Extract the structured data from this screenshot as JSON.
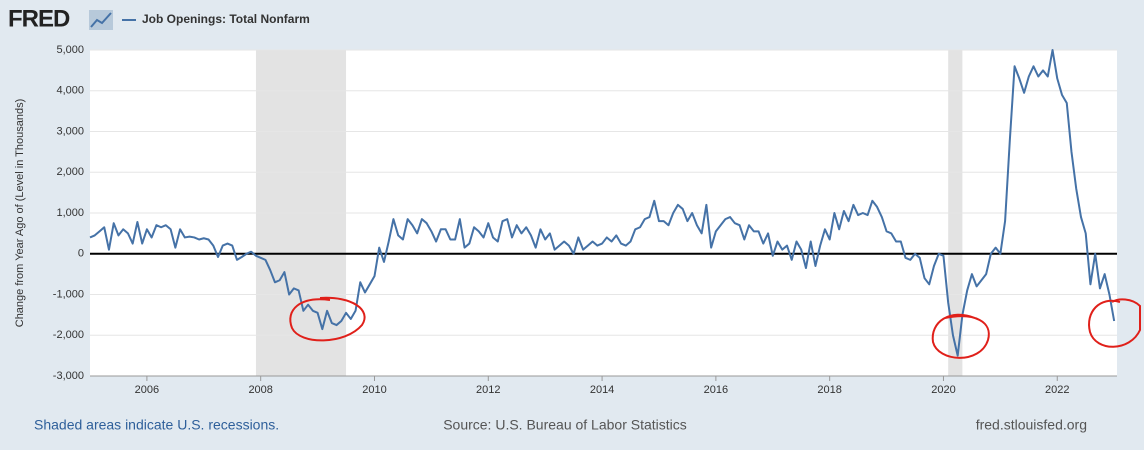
{
  "chart_data": {
    "type": "line",
    "logo": "FRED",
    "ylabel": "Change from Year Ago of (Level in Thousands)",
    "footnote": "Shaded areas indicate U.S. recessions.",
    "source": "Source: U.S. Bureau of Labor Statistics",
    "site": "fred.stlouisfed.org",
    "xlim": [
      2005,
      2023.05
    ],
    "xticks": [
      2006,
      2008,
      2010,
      2012,
      2014,
      2016,
      2018,
      2020,
      2022
    ],
    "ylim": [
      -3000,
      5000
    ],
    "yticks": [
      {
        "value": -3000,
        "label": "-3,000"
      },
      {
        "value": -2000,
        "label": "-2,000"
      },
      {
        "value": -1000,
        "label": "-1,000"
      },
      0,
      {
        "value": 1000,
        "label": "1,000"
      },
      {
        "value": 2000,
        "label": "2,000"
      },
      {
        "value": 3000,
        "label": "3,000"
      },
      {
        "value": 4000,
        "label": "4,000"
      },
      {
        "value": 5000,
        "label": "5,000"
      }
    ],
    "grid": true,
    "shaded_areas": [
      [
        2007.917,
        2009.5
      ],
      [
        2020.083,
        2020.333
      ]
    ],
    "x": [
      2005,
      2005.083,
      2005.167,
      2005.25,
      2005.333,
      2005.417,
      2005.5,
      2005.583,
      2005.667,
      2005.75,
      2005.833,
      2005.917,
      2006,
      2006.083,
      2006.167,
      2006.25,
      2006.333,
      2006.417,
      2006.5,
      2006.583,
      2006.667,
      2006.75,
      2006.833,
      2006.917,
      2007,
      2007.083,
      2007.167,
      2007.25,
      2007.333,
      2007.417,
      2007.5,
      2007.583,
      2007.667,
      2007.75,
      2007.833,
      2007.917,
      2008,
      2008.083,
      2008.167,
      2008.25,
      2008.333,
      2008.417,
      2008.5,
      2008.583,
      2008.667,
      2008.75,
      2008.833,
      2008.917,
      2009,
      2009.083,
      2009.167,
      2009.25,
      2009.333,
      2009.417,
      2009.5,
      2009.583,
      2009.667,
      2009.75,
      2009.833,
      2009.917,
      2010,
      2010.083,
      2010.167,
      2010.25,
      2010.333,
      2010.417,
      2010.5,
      2010.583,
      2010.667,
      2010.75,
      2010.833,
      2010.917,
      2011,
      2011.083,
      2011.167,
      2011.25,
      2011.333,
      2011.417,
      2011.5,
      2011.583,
      2011.667,
      2011.75,
      2011.833,
      2011.917,
      2012,
      2012.083,
      2012.167,
      2012.25,
      2012.333,
      2012.417,
      2012.5,
      2012.583,
      2012.667,
      2012.75,
      2012.833,
      2012.917,
      2013,
      2013.083,
      2013.167,
      2013.25,
      2013.333,
      2013.417,
      2013.5,
      2013.583,
      2013.667,
      2013.75,
      2013.833,
      2013.917,
      2014,
      2014.083,
      2014.167,
      2014.25,
      2014.333,
      2014.417,
      2014.5,
      2014.583,
      2014.667,
      2014.75,
      2014.833,
      2014.917,
      2015,
      2015.083,
      2015.167,
      2015.25,
      2015.333,
      2015.417,
      2015.5,
      2015.583,
      2015.667,
      2015.75,
      2015.833,
      2015.917,
      2016,
      2016.083,
      2016.167,
      2016.25,
      2016.333,
      2016.417,
      2016.5,
      2016.583,
      2016.667,
      2016.75,
      2016.833,
      2016.917,
      2017,
      2017.083,
      2017.167,
      2017.25,
      2017.333,
      2017.417,
      2017.5,
      2017.583,
      2017.667,
      2017.75,
      2017.833,
      2017.917,
      2018,
      2018.083,
      2018.167,
      2018.25,
      2018.333,
      2018.417,
      2018.5,
      2018.583,
      2018.667,
      2018.75,
      2018.833,
      2018.917,
      2019,
      2019.083,
      2019.167,
      2019.25,
      2019.333,
      2019.417,
      2019.5,
      2019.583,
      2019.667,
      2019.75,
      2019.833,
      2019.917,
      2020,
      2020.083,
      2020.167,
      2020.25,
      2020.333,
      2020.417,
      2020.5,
      2020.583,
      2020.667,
      2020.75,
      2020.833,
      2020.917,
      2021,
      2021.083,
      2021.167,
      2021.25,
      2021.333,
      2021.417,
      2021.5,
      2021.583,
      2021.667,
      2021.75,
      2021.833,
      2021.917,
      2022,
      2022.083,
      2022.167,
      2022.25,
      2022.333,
      2022.417,
      2022.5,
      2022.583,
      2022.667,
      2022.75,
      2022.833,
      2022.917,
      2023
    ],
    "series": [
      {
        "name": "Job Openings: Total Nonfarm",
        "color": "#4572a7",
        "values": [
          400,
          450,
          550,
          650,
          100,
          750,
          450,
          600,
          500,
          250,
          780,
          250,
          600,
          400,
          700,
          650,
          700,
          600,
          150,
          600,
          400,
          420,
          400,
          350,
          380,
          350,
          200,
          -80,
          200,
          250,
          200,
          -150,
          -80,
          0,
          50,
          -50,
          -100,
          -150,
          -400,
          -700,
          -650,
          -450,
          -1000,
          -850,
          -900,
          -1400,
          -1250,
          -1400,
          -1450,
          -1850,
          -1400,
          -1700,
          -1750,
          -1650,
          -1450,
          -1600,
          -1400,
          -700,
          -950,
          -750,
          -550,
          150,
          -200,
          300,
          850,
          450,
          350,
          850,
          700,
          500,
          850,
          750,
          550,
          300,
          600,
          600,
          350,
          350,
          850,
          150,
          250,
          650,
          550,
          400,
          750,
          400,
          300,
          800,
          850,
          400,
          700,
          500,
          650,
          450,
          150,
          600,
          350,
          500,
          100,
          200,
          300,
          200,
          0,
          400,
          100,
          200,
          300,
          200,
          250,
          400,
          300,
          450,
          250,
          200,
          300,
          600,
          650,
          850,
          900,
          1300,
          800,
          800,
          700,
          1000,
          1200,
          1100,
          800,
          1000,
          700,
          500,
          1200,
          150,
          550,
          700,
          850,
          900,
          750,
          700,
          350,
          700,
          550,
          550,
          250,
          500,
          -50,
          300,
          100,
          200,
          -150,
          300,
          100,
          -350,
          300,
          -300,
          200,
          600,
          350,
          1000,
          600,
          1050,
          800,
          1200,
          950,
          1000,
          950,
          1300,
          1150,
          900,
          550,
          500,
          300,
          300,
          -100,
          -150,
          0,
          -100,
          -600,
          -750,
          -300,
          0,
          -50,
          -1200,
          -2000,
          -2500,
          -1500,
          -900,
          -500,
          -800,
          -650,
          -500,
          0,
          150,
          0,
          800,
          2800,
          4600,
          4300,
          3950,
          4350,
          4600,
          4350,
          4500,
          4350,
          5000,
          4300,
          3900,
          3700,
          2500,
          1600,
          900,
          500,
          -750,
          0,
          -850,
          -500,
          -1000,
          -1650
        ]
      }
    ]
  }
}
